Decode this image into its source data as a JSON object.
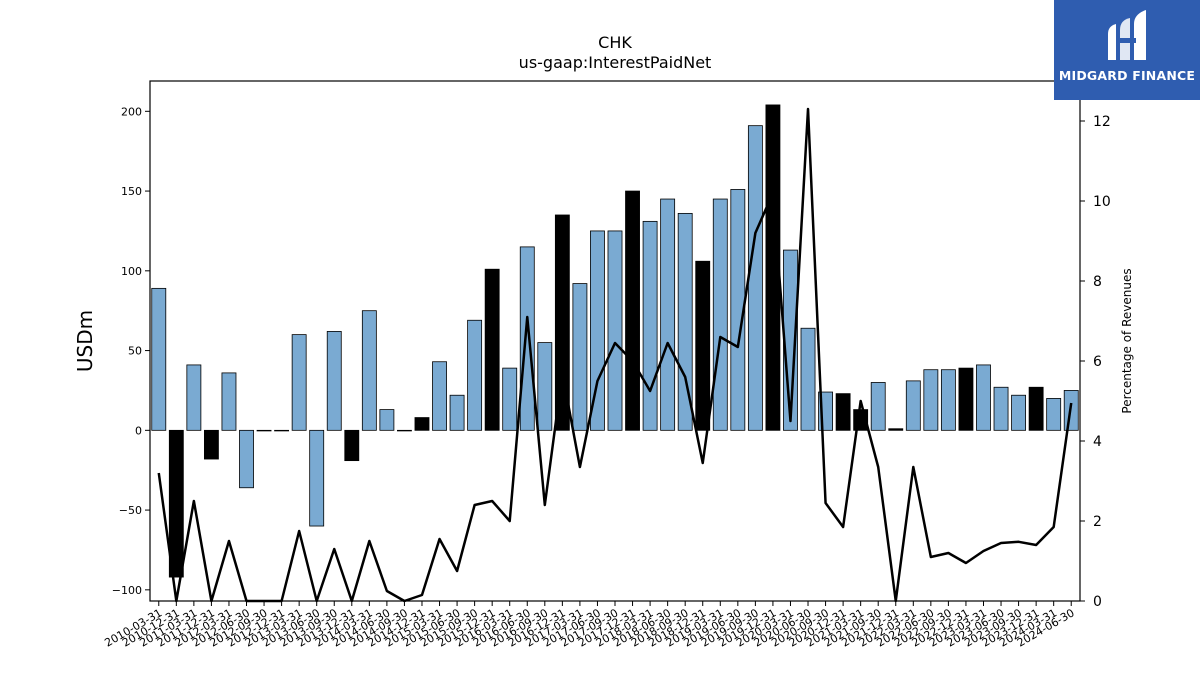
{
  "chart_data": {
    "type": "bar",
    "title": "CHK",
    "subtitle": "us-gaap:InterestPaidNet",
    "ylabel": "USDm",
    "y2label": "Percentage of Revenues",
    "ylim": [
      -107,
      219
    ],
    "y2lim": [
      0,
      13
    ],
    "yticks": [
      -100,
      -50,
      0,
      50,
      100,
      150,
      200
    ],
    "y2ticks": [
      0,
      2,
      4,
      6,
      8,
      10,
      12
    ],
    "categories": [
      "2010-03-31",
      "2010-12-31",
      "2011-03-31",
      "2011-12-31",
      "2012-03-31",
      "2012-06-30",
      "2012-09-30",
      "2012-12-31",
      "2013-03-31",
      "2013-06-30",
      "2013-09-30",
      "2013-12-31",
      "2014-03-31",
      "2014-06-30",
      "2014-09-30",
      "2014-12-31",
      "2015-03-31",
      "2015-06-30",
      "2015-09-30",
      "2015-12-31",
      "2016-03-31",
      "2016-06-30",
      "2016-09-30",
      "2016-12-31",
      "2017-03-31",
      "2017-06-30",
      "2017-09-30",
      "2017-12-31",
      "2018-03-31",
      "2018-06-30",
      "2018-09-30",
      "2018-12-31",
      "2019-03-31",
      "2019-06-30",
      "2019-09-30",
      "2019-12-31",
      "2020-03-31",
      "2020-06-30",
      "2020-09-30",
      "2020-12-31",
      "2021-03-31",
      "2021-09-30",
      "2021-12-31",
      "2022-03-31",
      "2022-06-30",
      "2022-09-30",
      "2022-12-31",
      "2023-03-31",
      "2023-06-30",
      "2023-09-30",
      "2023-12-31",
      "2024-03-31",
      "2024-06-30"
    ],
    "tick_labels": [
      "2010-03-31",
      "2010-12-31",
      "2011-03-31",
      "2011-12-31",
      "2012-03-31",
      "2012-06-30",
      "2012-09-30",
      "2012-12-31",
      "2013-03-31",
      "2013-06-30",
      "2013-09-30",
      "2013-12-31",
      "2014-03-31",
      "2014-06-30",
      "2014-09-30",
      "2014-12-31",
      "2015-03-31",
      "2015-06-30",
      "2015-09-30",
      "2015-12-31",
      "2016-03-31",
      "2016-06-30",
      "2016-09-30",
      "2016-12-31",
      "2017-03-31",
      "2017-06-30",
      "2017-09-30",
      "2017-12-31",
      "2018-03-31",
      "2018-06-30",
      "2018-09-30",
      "2018-12-31",
      "2019-03-31",
      "2019-06-30",
      "2019-09-30",
      "2019-12-31",
      "2020-03-31",
      "2020-06-30",
      "2020-09-30",
      "2020-12-31",
      "2021-03-31",
      "2021-09-30",
      "2021-12-31",
      "2022-03-31",
      "2022-06-30",
      "2022-09-30",
      "2022-12-31",
      "2023-03-31",
      "2023-06-30",
      "2023-09-30",
      "2023-12-31",
      "2024-03-31",
      "2024-06-30"
    ],
    "values": [
      89,
      -92,
      41,
      -18,
      36,
      -36,
      0,
      0,
      60,
      -60,
      62,
      -19,
      75,
      13,
      0,
      8,
      43,
      22,
      69,
      101,
      39,
      115,
      55,
      135,
      92,
      125,
      125,
      150,
      131,
      145,
      136,
      106,
      145,
      151,
      191,
      204,
      113,
      64,
      24,
      23,
      13,
      30,
      1,
      31,
      38,
      38,
      39,
      41,
      27,
      22,
      27,
      20,
      25
    ],
    "highlight": [
      false,
      true,
      false,
      true,
      false,
      false,
      false,
      false,
      false,
      false,
      false,
      true,
      false,
      false,
      false,
      true,
      false,
      false,
      false,
      true,
      false,
      false,
      false,
      true,
      false,
      false,
      false,
      true,
      false,
      false,
      false,
      true,
      false,
      false,
      false,
      true,
      false,
      false,
      false,
      true,
      true,
      false,
      true,
      false,
      false,
      false,
      true,
      false,
      false,
      false,
      true,
      false,
      false
    ],
    "line_series": {
      "values": [
        3.2,
        0.0,
        2.5,
        0.0,
        1.5,
        0.0,
        0.0,
        0.0,
        1.75,
        0.0,
        1.3,
        0.0,
        1.5,
        0.25,
        0.0,
        0.15,
        1.55,
        0.75,
        2.4,
        2.5,
        2.0,
        7.1,
        2.4,
        5.7,
        3.35,
        5.5,
        6.45,
        6.0,
        5.25,
        6.45,
        5.6,
        3.45,
        6.6,
        6.35,
        9.2,
        10.2,
        4.5,
        12.3,
        2.45,
        1.85,
        5.0,
        3.35,
        0.0,
        3.35,
        1.1,
        1.2,
        0.95,
        1.25,
        1.45,
        1.48,
        1.4,
        1.85,
        4.95
      ]
    },
    "colors": {
      "bar": "#7aaad2",
      "bar_highlight": "#000000",
      "line": "#000000"
    },
    "grid": false,
    "legend": "none"
  },
  "logo": {
    "text": "MIDGARD FINANCE",
    "color": "#2f5db0"
  }
}
